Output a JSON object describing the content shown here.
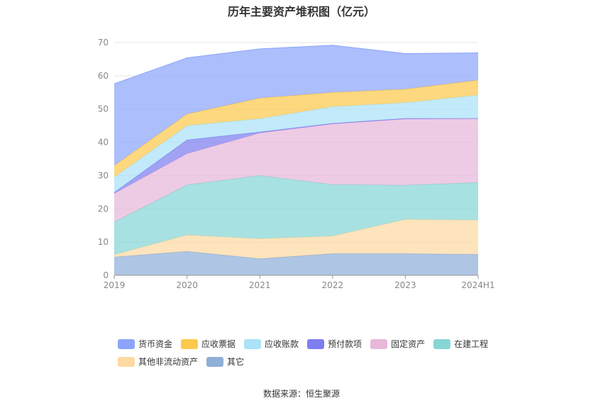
{
  "chart_data": {
    "type": "area",
    "stacked": true,
    "title": "历年主要资产堆积图（亿元）",
    "categories": [
      "2019",
      "2020",
      "2021",
      "2022",
      "2023",
      "2024H1"
    ],
    "ylim": [
      0,
      70
    ],
    "yticks": [
      0,
      10,
      20,
      30,
      40,
      50,
      60,
      70
    ],
    "grid": true,
    "legend_position": "bottom",
    "series": [
      {
        "name": "其它",
        "color": "#8fafd9",
        "values": [
          5.5,
          7.2,
          5.0,
          6.5,
          6.5,
          6.3
        ]
      },
      {
        "name": "其他非流动资产",
        "color": "#fdd9a3",
        "values": [
          0.7,
          4.9,
          6.0,
          5.3,
          10.3,
          10.3
        ]
      },
      {
        "name": "在建工程",
        "color": "#86d6d5",
        "values": [
          9.8,
          15.1,
          19.0,
          15.5,
          10.3,
          11.3
        ]
      },
      {
        "name": "固定资产",
        "color": "#e8b7d9",
        "values": [
          8.6,
          9.4,
          12.8,
          18.2,
          19.9,
          19.2
        ]
      },
      {
        "name": "预付款项",
        "color": "#7d7ef0",
        "values": [
          0.3,
          4.1,
          0.3,
          0.2,
          0.2,
          0.1
        ]
      },
      {
        "name": "应收账款",
        "color": "#abe2f8",
        "values": [
          4.6,
          4.3,
          4.0,
          5.0,
          4.7,
          7.0
        ]
      },
      {
        "name": "应收票据",
        "color": "#fcc94e",
        "values": [
          3.5,
          3.5,
          6.2,
          4.3,
          4.1,
          4.5
        ]
      },
      {
        "name": "货币资金",
        "color": "#8ca5fb",
        "values": [
          24.6,
          16.9,
          14.8,
          14.2,
          10.7,
          8.2
        ]
      }
    ]
  },
  "legend": {
    "items": [
      {
        "label": "货币资金",
        "color": "#8ca5fb"
      },
      {
        "label": "应收票据",
        "color": "#fcc94e"
      },
      {
        "label": "应收账款",
        "color": "#abe2f8"
      },
      {
        "label": "预付款项",
        "color": "#7d7ef0"
      },
      {
        "label": "固定资产",
        "color": "#e8b7d9"
      },
      {
        "label": "在建工程",
        "color": "#86d6d5"
      },
      {
        "label": "其他非流动资产",
        "color": "#fdd9a3"
      },
      {
        "label": "其它",
        "color": "#8fafd9"
      }
    ]
  },
  "source": "数据来源：恒生聚源"
}
